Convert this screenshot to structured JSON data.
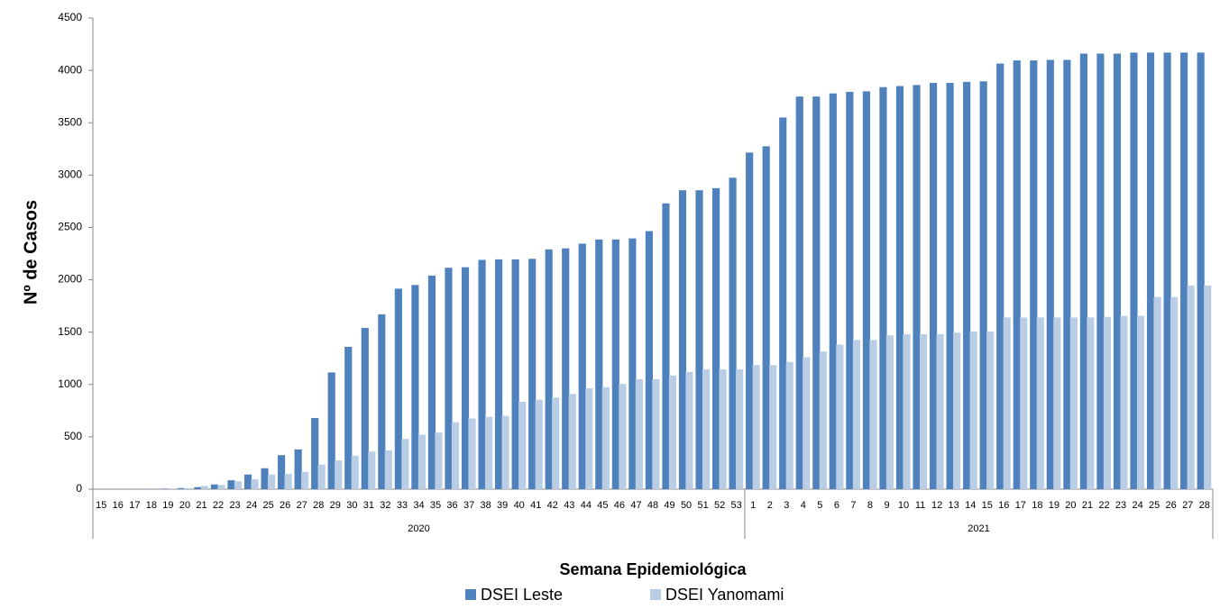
{
  "chart_data": {
    "type": "bar",
    "x_label": "Semana Epidemiológica",
    "y_label": "Nº de Casos",
    "groups": [
      {
        "name": "2020",
        "categories": [
          "15",
          "16",
          "17",
          "18",
          "19",
          "20",
          "21",
          "22",
          "23",
          "24",
          "25",
          "26",
          "27",
          "28",
          "29",
          "30",
          "31",
          "32",
          "33",
          "34",
          "35",
          "36",
          "37",
          "38",
          "39",
          "40",
          "41",
          "42",
          "43",
          "44",
          "45",
          "46",
          "47",
          "48",
          "49",
          "50",
          "51",
          "52",
          "53"
        ]
      },
      {
        "name": "2021",
        "categories": [
          "1",
          "2",
          "3",
          "4",
          "5",
          "6",
          "7",
          "8",
          "9",
          "10",
          "11",
          "12",
          "13",
          "14",
          "15",
          "16",
          "17",
          "18",
          "19",
          "20",
          "21",
          "22",
          "23",
          "24",
          "25",
          "26",
          "27",
          "28"
        ]
      }
    ],
    "series": [
      {
        "name": "DSEI Leste",
        "color": "#4f81bd",
        "values": [
          0,
          0,
          0,
          2,
          5,
          10,
          20,
          45,
          85,
          140,
          200,
          325,
          380,
          680,
          1115,
          1360,
          1540,
          1670,
          1915,
          1950,
          2040,
          2115,
          2120,
          2190,
          2195,
          2195,
          2200,
          2290,
          2300,
          2345,
          2385,
          2385,
          2395,
          2465,
          2730,
          2855,
          2855,
          2875,
          2975,
          3215,
          3275,
          3550,
          3750,
          3750,
          3780,
          3795,
          3800,
          3840,
          3850,
          3860,
          3880,
          3880,
          3890,
          3895,
          4065,
          4095,
          4095,
          4100,
          4100,
          4160,
          4160,
          4160,
          4170,
          4170,
          4170,
          4170,
          4170
        ]
      },
      {
        "name": "DSEI Yanomami",
        "color": "#b9cde5",
        "values": [
          0,
          0,
          0,
          0,
          2,
          10,
          30,
          40,
          75,
          95,
          140,
          145,
          165,
          235,
          275,
          320,
          360,
          370,
          480,
          520,
          540,
          640,
          675,
          690,
          700,
          835,
          855,
          875,
          910,
          965,
          975,
          1005,
          1050,
          1050,
          1085,
          1120,
          1145,
          1145,
          1145,
          1185,
          1185,
          1215,
          1260,
          1315,
          1380,
          1425,
          1425,
          1470,
          1480,
          1480,
          1480,
          1495,
          1505,
          1505,
          1640,
          1640,
          1640,
          1640,
          1640,
          1640,
          1645,
          1655,
          1655,
          1835,
          1835,
          1945,
          1945
        ]
      }
    ],
    "ylim": [
      0,
      4500
    ],
    "yticks": [
      0,
      500,
      1000,
      1500,
      2000,
      2500,
      3000,
      3500,
      4000,
      4500
    ],
    "grid": false
  }
}
